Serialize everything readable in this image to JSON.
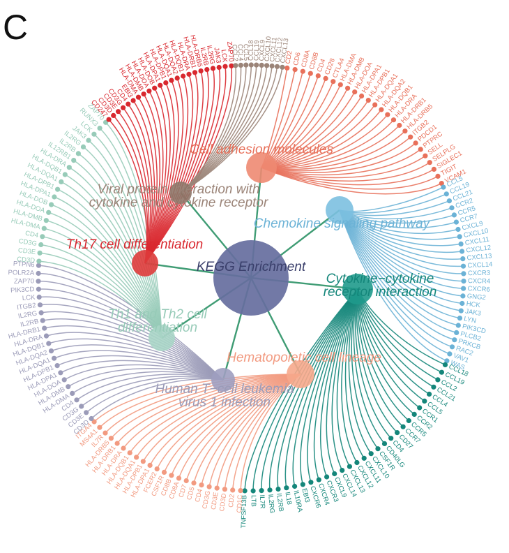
{
  "panel_letter": "C",
  "center": {
    "label": "KEGG Enrichment",
    "color": "#666e9e"
  },
  "pathways": [
    {
      "key": "cam",
      "label": [
        "Cell adhesion molecules"
      ],
      "color": "#e8705a",
      "node_color": "#ee8a72",
      "start": -1.4,
      "end": -0.46,
      "genes": [
        "CD2",
        "CD6",
        "CD8A",
        "CD8B",
        "CD4",
        "CD28",
        "CTLA4",
        "HLA-DMA",
        "HLA-DMB",
        "HLA-DOA",
        "HLA-DPA1",
        "HLA-DPB1",
        "HLA-DQA1",
        "HLA-DQA2",
        "HLA-DQB1",
        "HLA-DRA",
        "HLA-DRB1",
        "HLA-DRB5",
        "ITGB2",
        "PDCD1",
        "PTPRC",
        "SELL",
        "SELPLG",
        "SIGLEC1",
        "TIGIT",
        "VCAM1"
      ]
    },
    {
      "key": "chemokine",
      "label": [
        "Chemokine signaling pathway"
      ],
      "color": "#6bb2d6",
      "node_color": "#7cc0e0",
      "start": -0.44,
      "end": 0.4,
      "genes": [
        "CCL5",
        "CCL19",
        "CCL21",
        "CCR2",
        "CCR5",
        "CCR7",
        "CXCL9",
        "CXCL10",
        "CXCL11",
        "CXCL12",
        "CXCL13",
        "CXCL14",
        "CXCR3",
        "CXCR4",
        "CXCR6",
        "GNG2",
        "HCK",
        "JAK3",
        "LYN",
        "PIK3CD",
        "PLCB2",
        "PRKCB",
        "RAC2",
        "VAV1",
        "WAS"
      ]
    },
    {
      "key": "cytokine",
      "label": [
        "Cytokine−cytokine",
        "receptor interaction"
      ],
      "color": "#14867a",
      "node_color": "#1f9a8c",
      "start": 0.42,
      "end": 1.6,
      "genes": [
        "CCL18",
        "CCL19",
        "CCL2",
        "CCL21",
        "CCL4",
        "CCL5",
        "CCR1",
        "CCR2",
        "CCR5",
        "CCR7",
        "CD27",
        "CD4",
        "CD40LG",
        "CSF1R",
        "CXCL10",
        "CXCL11",
        "CXCL12",
        "CXCL13",
        "CXCL14",
        "CXCL9",
        "CXCR3",
        "CXCR4",
        "CXCR6",
        "EBI3",
        "IL10RA",
        "IL18",
        "IL2RB",
        "IL2RG",
        "IL7R",
        "LTB",
        "TNFSF13B"
      ]
    },
    {
      "key": "hema",
      "label": [
        "Hematopoietic cell lineage"
      ],
      "color": "#f29a80",
      "node_color": "#f6a88c",
      "start": 1.62,
      "end": 2.4,
      "genes": [
        "CD1C",
        "CD2",
        "CD3D",
        "CD3E",
        "CD3G",
        "CD4",
        "CD5",
        "CD7",
        "CD8A",
        "CD8B",
        "CSF1R",
        "FCER2",
        "HLA-DPA1",
        "HLA-DPB1",
        "HLA-DQA1",
        "HLA-DQB1",
        "HLA-DRA",
        "HLA-DRB1",
        "HLA-DRB5",
        "IL7R",
        "MS4A1",
        "ITGA4"
      ]
    },
    {
      "key": "htlv",
      "label": [
        "Human T−cell leukemia",
        "virus 1 infection"
      ],
      "color": "#9b9bb8",
      "node_color": "#9f9fc0",
      "start": 2.42,
      "end": 3.2,
      "genes": [
        "CD3D",
        "CD3E",
        "CD3G",
        "CD4",
        "HLA-DMA",
        "HLA-DMB",
        "HLA-DOA",
        "HLA-DPA1",
        "HLA-DPB1",
        "HLA-DQA1",
        "HLA-DQA2",
        "HLA-DQB1",
        "HLA-DRA",
        "HLA-DRB1",
        "IL2RB",
        "IL2RG",
        "ITGB2",
        "LCK",
        "PIK3CD",
        "ZAP70",
        "POLR2A",
        "PTPN6"
      ]
    },
    {
      "key": "th1th2",
      "label": [
        "Th1 and Th2 cell",
        "differentiation"
      ],
      "color": "#97cbb8",
      "node_color": "#a9d5c6",
      "start": 3.22,
      "end": 3.96,
      "genes": [
        "CD3D",
        "CD3E",
        "CD3G",
        "CD4",
        "HLA-DMA",
        "HLA-DMB",
        "HLA-DOA",
        "HLA-DOB",
        "HLA-DPA1",
        "HLA-DPB1",
        "HLA-DQA1",
        "HLA-DQB1",
        "HLA-DRA",
        "IL12RB1",
        "IL2RB",
        "IL2RG",
        "JAK3",
        "LCK",
        "RUNX3",
        "ZAP70"
      ]
    },
    {
      "key": "th17",
      "label": [
        "Th17 cell differentiation"
      ],
      "color": "#d9282f",
      "node_color": "#de3b3b",
      "start": 3.98,
      "end": 4.62,
      "genes": [
        "CD247",
        "CD3D",
        "CD3E",
        "CD3G",
        "CD4",
        "EBI3",
        "HLA-DMA",
        "HLA-DMB",
        "HLA-DOA",
        "HLA-DOB",
        "HLA-DPA1",
        "HLA-DPB1",
        "HLA-DQA1",
        "HLA-DQA2",
        "HLA-DQB1",
        "HLA-DRA",
        "HLA-DRB1",
        "HLA-DRB5",
        "IL2RB",
        "IL2RG",
        "JAK3",
        "LCK",
        "ZAP70"
      ]
    },
    {
      "key": "viral",
      "label": [
        "Viral protein interaction with",
        "cytokine and cytokine receptor"
      ],
      "color": "#9b8478",
      "node_color": "#8d7568",
      "start": 4.64,
      "end": 4.86,
      "genes": [
        "CCL2",
        "CCL4",
        "CCL5",
        "CCL18",
        "CCL19",
        "CXCL9",
        "CXCL10",
        "CXCL11",
        "CXCL12",
        "CXCL13"
      ]
    }
  ]
}
